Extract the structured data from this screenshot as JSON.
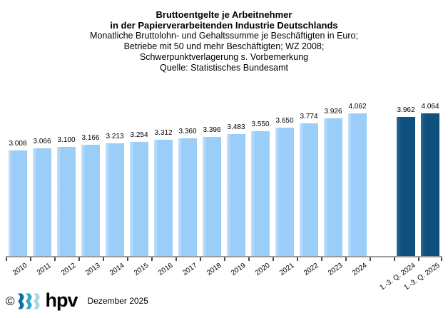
{
  "title": {
    "lines": [
      "Bruttoentgelte je Arbeitnehmer",
      "in der Papierverarbeitenden Industrie Deutschlands",
      "Monatliche Bruttolohn- und Gehaltssumme je Beschäftigten in Euro;",
      "Betriebe mit 50 und mehr Beschäftigten; WZ 2008;",
      "Schwerpunktverlagerung s. Vorbemerkung",
      "Quelle: Statistisches Bundesamt"
    ]
  },
  "chart_data": {
    "type": "bar",
    "title": "Bruttoentgelte je Arbeitnehmer in der Papierverarbeitenden Industrie Deutschlands",
    "subtitle": "Monatliche Bruttolohn- und Gehaltssumme je Beschäftigten in Euro; Betriebe mit 50 und mehr Beschäftigten; WZ 2008; Schwerpunktverlagerung s. Vorbemerkung",
    "source": "Quelle: Statistisches Bundesamt",
    "categories": [
      "2010",
      "2011",
      "2012",
      "2013",
      "2014",
      "2015",
      "2016",
      "2017",
      "2018",
      "2019",
      "2020",
      "2021",
      "2022",
      "2023",
      "2024",
      "1.-3. Q. 2024",
      "1.-3. Q. 2025"
    ],
    "values": [
      3008,
      3066,
      3100,
      3166,
      3213,
      3254,
      3312,
      3360,
      3396,
      3483,
      3550,
      3650,
      3774,
      3926,
      4062,
      3962,
      4064
    ],
    "value_labels": [
      "3.008",
      "3.066",
      "3.100",
      "3.166",
      "3.213",
      "3.254",
      "3.312",
      "3.360",
      "3.396",
      "3.483",
      "3.550",
      "3.650",
      "3.774",
      "3.926",
      "4.062",
      "3.962",
      "4.064"
    ],
    "bars": [
      {
        "category": "2010",
        "value": 3008,
        "label": "3.008",
        "group": "year"
      },
      {
        "category": "2011",
        "value": 3066,
        "label": "3.066",
        "group": "year"
      },
      {
        "category": "2012",
        "value": 3100,
        "label": "3.100",
        "group": "year"
      },
      {
        "category": "2013",
        "value": 3166,
        "label": "3.166",
        "group": "year"
      },
      {
        "category": "2014",
        "value": 3213,
        "label": "3.213",
        "group": "year"
      },
      {
        "category": "2015",
        "value": 3254,
        "label": "3.254",
        "group": "year"
      },
      {
        "category": "2016",
        "value": 3312,
        "label": "3.312",
        "group": "year"
      },
      {
        "category": "2017",
        "value": 3360,
        "label": "3.360",
        "group": "year"
      },
      {
        "category": "2018",
        "value": 3396,
        "label": "3.396",
        "group": "year"
      },
      {
        "category": "2019",
        "value": 3483,
        "label": "3.483",
        "group": "year"
      },
      {
        "category": "2020",
        "value": 3550,
        "label": "3.550",
        "group": "year"
      },
      {
        "category": "2021",
        "value": 3650,
        "label": "3.650",
        "group": "year"
      },
      {
        "category": "2022",
        "value": 3774,
        "label": "3.774",
        "group": "year"
      },
      {
        "category": "2023",
        "value": 3926,
        "label": "3.926",
        "group": "year"
      },
      {
        "category": "2024",
        "value": 4062,
        "label": "4.062",
        "group": "year"
      },
      {
        "category": "",
        "value": null,
        "label": "",
        "group": "gap"
      },
      {
        "category": "1.-3. Q. 2024",
        "value": 3962,
        "label": "3.962",
        "group": "quarter"
      },
      {
        "category": "1.-3. Q. 2025",
        "value": 4064,
        "label": "4.064",
        "group": "quarter"
      }
    ],
    "xlabel": "",
    "ylabel": "",
    "ylim": [
      0,
      4300
    ],
    "grid": false,
    "legend": false,
    "colors": {
      "year_bars": "#9BCDF9",
      "quarter_bars": "#0E507E",
      "axis": "#9B9B9B"
    }
  },
  "footer": {
    "copyright_symbol": "©",
    "logo_text": "hpv",
    "logo_chevron_colors": [
      "#0B6F9B",
      "#38A7CA",
      "#AAD7E8"
    ],
    "date_text": "Dezember 2025"
  }
}
